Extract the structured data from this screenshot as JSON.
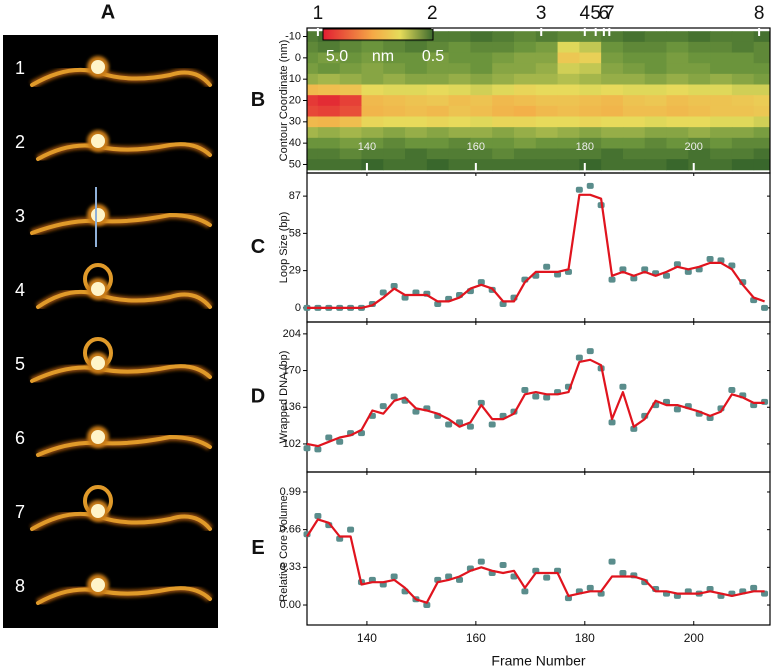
{
  "panel_a": {
    "label": "A",
    "frames": [
      "1",
      "2",
      "3",
      "4",
      "5",
      "6",
      "7",
      "8"
    ]
  },
  "chart_data": [
    {
      "type": "heatmap",
      "panel_label": "B",
      "y_label": "Contour Coordinate (nm)",
      "x": [
        129,
        133,
        137,
        141,
        145,
        149,
        153,
        157,
        161,
        165,
        169,
        173,
        177,
        181,
        185,
        189,
        193,
        197,
        201,
        205,
        209,
        213
      ],
      "y": [
        -10,
        -5,
        0,
        5,
        10,
        15,
        20,
        25,
        30,
        35,
        40,
        45,
        50
      ],
      "z": [
        [
          0.8,
          0.7,
          0.8,
          0.9,
          0.8,
          0.7,
          0.8,
          0.8,
          0.7,
          0.8,
          0.9,
          0.8,
          0.9,
          0.9,
          0.8,
          0.7,
          0.8,
          0.8,
          0.7,
          0.8,
          0.8,
          0.7
        ],
        [
          0.9,
          0.8,
          0.9,
          1.0,
          0.9,
          0.8,
          0.9,
          1.0,
          0.9,
          0.9,
          1.0,
          1.1,
          1.8,
          1.6,
          1.0,
          0.9,
          0.9,
          1.0,
          0.9,
          0.9,
          0.8,
          0.9
        ],
        [
          1.0,
          1.1,
          1.0,
          1.1,
          1.0,
          1.0,
          1.1,
          1.0,
          1.0,
          1.1,
          1.2,
          1.2,
          2.3,
          2.1,
          1.1,
          1.0,
          1.0,
          1.1,
          1.0,
          1.0,
          1.0,
          0.9
        ],
        [
          1.1,
          1.0,
          1.1,
          1.2,
          1.1,
          1.0,
          1.1,
          1.1,
          1.0,
          1.2,
          1.2,
          1.3,
          1.7,
          1.6,
          1.2,
          1.1,
          1.0,
          1.1,
          1.1,
          1.0,
          1.0,
          1.0
        ],
        [
          1.3,
          1.4,
          1.3,
          1.2,
          1.3,
          1.2,
          1.2,
          1.3,
          1.2,
          1.3,
          1.4,
          1.4,
          1.5,
          1.4,
          1.3,
          1.3,
          1.2,
          1.3,
          1.2,
          1.3,
          1.2,
          1.1
        ],
        [
          2.6,
          2.5,
          2.4,
          1.9,
          1.8,
          1.8,
          1.9,
          1.8,
          1.7,
          1.8,
          2.0,
          1.9,
          1.9,
          1.8,
          1.9,
          1.8,
          1.8,
          1.9,
          1.8,
          1.8,
          1.7,
          1.7
        ],
        [
          4.6,
          4.8,
          4.5,
          2.6,
          2.5,
          2.4,
          2.3,
          2.5,
          2.4,
          2.6,
          2.5,
          2.4,
          2.4,
          2.5,
          2.6,
          2.4,
          2.3,
          2.5,
          2.4,
          2.4,
          2.3,
          2.2
        ],
        [
          4.4,
          4.5,
          4.3,
          2.7,
          2.6,
          2.5,
          2.6,
          2.4,
          2.5,
          2.7,
          2.8,
          2.6,
          2.5,
          2.6,
          2.7,
          2.5,
          2.5,
          2.6,
          2.5,
          2.4,
          2.4,
          2.3
        ],
        [
          2.6,
          2.7,
          2.5,
          2.0,
          1.9,
          1.9,
          2.0,
          1.9,
          1.8,
          2.0,
          2.0,
          1.9,
          1.9,
          2.0,
          1.9,
          1.9,
          1.8,
          1.9,
          1.9,
          1.8,
          1.8,
          1.7
        ],
        [
          1.4,
          1.3,
          1.4,
          1.3,
          1.2,
          1.3,
          1.2,
          1.3,
          1.3,
          1.2,
          1.3,
          1.4,
          1.3,
          1.2,
          1.3,
          1.3,
          1.2,
          1.2,
          1.3,
          1.2,
          1.2,
          1.1
        ],
        [
          1.0,
          1.0,
          1.1,
          1.0,
          0.9,
          1.0,
          1.0,
          0.9,
          1.0,
          1.0,
          1.1,
          1.0,
          1.0,
          0.9,
          1.0,
          1.0,
          0.9,
          1.0,
          0.9,
          1.0,
          0.9,
          0.9
        ],
        [
          0.8,
          0.8,
          0.9,
          0.8,
          0.8,
          0.7,
          0.8,
          0.8,
          0.8,
          0.9,
          0.8,
          0.8,
          0.8,
          0.8,
          0.7,
          0.8,
          0.8,
          0.8,
          0.7,
          0.8,
          0.8,
          0.7
        ],
        [
          0.7,
          0.7,
          0.7,
          0.6,
          0.7,
          0.7,
          0.6,
          0.7,
          0.7,
          0.7,
          0.7,
          0.7,
          0.7,
          0.6,
          0.7,
          0.7,
          0.7,
          0.6,
          0.7,
          0.7,
          0.6,
          0.6
        ]
      ],
      "zlim": [
        0.5,
        5
      ],
      "colorbar_label": "nm",
      "colorbar_ticks": [
        {
          "value": 5,
          "label": "5.0"
        },
        {
          "value": 0.5,
          "label": "0.5"
        }
      ],
      "xlim": [
        129,
        214
      ],
      "xticks": [
        140,
        160,
        180,
        200
      ],
      "ylim": [
        54,
        -14
      ],
      "yticks": [
        -10,
        0,
        10,
        20,
        30,
        40,
        50
      ],
      "annotations": [
        {
          "label": "1",
          "x": 131
        },
        {
          "label": "2",
          "x": 152
        },
        {
          "label": "3",
          "x": 172
        },
        {
          "label": "4",
          "x": 180
        },
        {
          "label": "5",
          "x": 182
        },
        {
          "label": "6",
          "x": 183.5
        },
        {
          "label": "7",
          "x": 184.5
        },
        {
          "label": "8",
          "x": 212
        }
      ]
    },
    {
      "type": "scatter",
      "panel_label": "C",
      "y_label": "Loop Size (bp)",
      "x": [
        129,
        131,
        133,
        135,
        137,
        139,
        141,
        143,
        145,
        147,
        149,
        151,
        153,
        155,
        157,
        159,
        161,
        163,
        165,
        167,
        169,
        171,
        173,
        175,
        177,
        179,
        181,
        183,
        185,
        187,
        189,
        191,
        193,
        195,
        197,
        199,
        201,
        203,
        205,
        207,
        209,
        211,
        213
      ],
      "series": [
        {
          "mode": "markers",
          "color": "#5a8d8c",
          "values": [
            0,
            0,
            0,
            0,
            0,
            0,
            3,
            12,
            17,
            8,
            12,
            11,
            3,
            7,
            10,
            13,
            20,
            14,
            3,
            8,
            22,
            25,
            32,
            26,
            28,
            92,
            95,
            80,
            22,
            30,
            23,
            30,
            27,
            25,
            34,
            28,
            30,
            38,
            37,
            33,
            20,
            6,
            0
          ]
        },
        {
          "mode": "line",
          "color": "#e0141e",
          "values": [
            0,
            0,
            0,
            0,
            0,
            0,
            2,
            8,
            15,
            10,
            10,
            10,
            5,
            5,
            8,
            15,
            18,
            15,
            5,
            5,
            20,
            28,
            28,
            28,
            30,
            88,
            88,
            85,
            25,
            28,
            25,
            28,
            25,
            28,
            32,
            30,
            32,
            35,
            35,
            30,
            18,
            8,
            5
          ]
        }
      ],
      "xlim": [
        129,
        214
      ],
      "ylim": [
        -11,
        105
      ],
      "yticks": [
        0,
        29,
        58,
        87
      ]
    },
    {
      "type": "scatter",
      "panel_label": "D",
      "y_label": "Wrapped DNA (bp)",
      "x": [
        129,
        131,
        133,
        135,
        137,
        139,
        141,
        143,
        145,
        147,
        149,
        151,
        153,
        155,
        157,
        159,
        161,
        163,
        165,
        167,
        169,
        171,
        173,
        175,
        177,
        179,
        181,
        183,
        185,
        187,
        189,
        191,
        193,
        195,
        197,
        199,
        201,
        203,
        205,
        207,
        209,
        211,
        213
      ],
      "series": [
        {
          "mode": "markers",
          "color": "#5a8d8c",
          "values": [
            98,
            97,
            108,
            104,
            112,
            112,
            128,
            137,
            146,
            142,
            132,
            135,
            128,
            120,
            122,
            118,
            140,
            120,
            128,
            132,
            152,
            146,
            145,
            150,
            155,
            182,
            188,
            172,
            122,
            155,
            116,
            128,
            138,
            141,
            134,
            137,
            130,
            126,
            135,
            152,
            147,
            138,
            141
          ]
        },
        {
          "mode": "line",
          "color": "#e0141e",
          "values": [
            102,
            100,
            104,
            108,
            110,
            115,
            133,
            130,
            142,
            145,
            135,
            133,
            130,
            125,
            118,
            122,
            138,
            125,
            125,
            130,
            148,
            150,
            148,
            148,
            150,
            178,
            180,
            175,
            125,
            150,
            118,
            125,
            142,
            138,
            138,
            135,
            132,
            128,
            132,
            148,
            145,
            140,
            140
          ]
        }
      ],
      "xlim": [
        129,
        214
      ],
      "ylim": [
        76,
        215
      ],
      "yticks": [
        102,
        136,
        170,
        204
      ]
    },
    {
      "type": "scatter",
      "panel_label": "E",
      "y_label": "Relative Core Volume",
      "x_label": "Frame Number",
      "x": [
        129,
        131,
        133,
        135,
        137,
        139,
        141,
        143,
        145,
        147,
        149,
        151,
        153,
        155,
        157,
        159,
        161,
        163,
        165,
        167,
        169,
        171,
        173,
        175,
        177,
        179,
        181,
        183,
        185,
        187,
        189,
        191,
        193,
        195,
        197,
        199,
        201,
        203,
        205,
        207,
        209,
        211,
        213
      ],
      "series": [
        {
          "mode": "markers",
          "color": "#5a8d8c",
          "values": [
            0.62,
            0.78,
            0.7,
            0.58,
            0.66,
            0.2,
            0.22,
            0.18,
            0.25,
            0.12,
            0.05,
            0.0,
            0.22,
            0.25,
            0.22,
            0.32,
            0.38,
            0.28,
            0.35,
            0.25,
            0.12,
            0.3,
            0.24,
            0.3,
            0.06,
            0.12,
            0.15,
            0.1,
            0.38,
            0.28,
            0.26,
            0.2,
            0.14,
            0.1,
            0.08,
            0.12,
            0.1,
            0.14,
            0.08,
            0.1,
            0.12,
            0.15,
            0.1
          ]
        },
        {
          "mode": "line",
          "color": "#e0141e",
          "values": [
            0.6,
            0.75,
            0.72,
            0.6,
            0.6,
            0.18,
            0.2,
            0.2,
            0.22,
            0.15,
            0.05,
            0.02,
            0.2,
            0.22,
            0.25,
            0.3,
            0.33,
            0.3,
            0.28,
            0.3,
            0.15,
            0.28,
            0.28,
            0.28,
            0.08,
            0.1,
            0.12,
            0.12,
            0.25,
            0.25,
            0.25,
            0.22,
            0.12,
            0.12,
            0.1,
            0.1,
            0.1,
            0.12,
            0.1,
            0.08,
            0.1,
            0.12,
            0.12
          ]
        }
      ],
      "xlim": [
        129,
        214
      ],
      "xticks": [
        140,
        160,
        180,
        200
      ],
      "ylim": [
        -0.175,
        1.165
      ],
      "yticks": [
        {
          "value": 0,
          "label": "0.00"
        },
        0.33,
        0.66,
        0.99
      ]
    }
  ]
}
